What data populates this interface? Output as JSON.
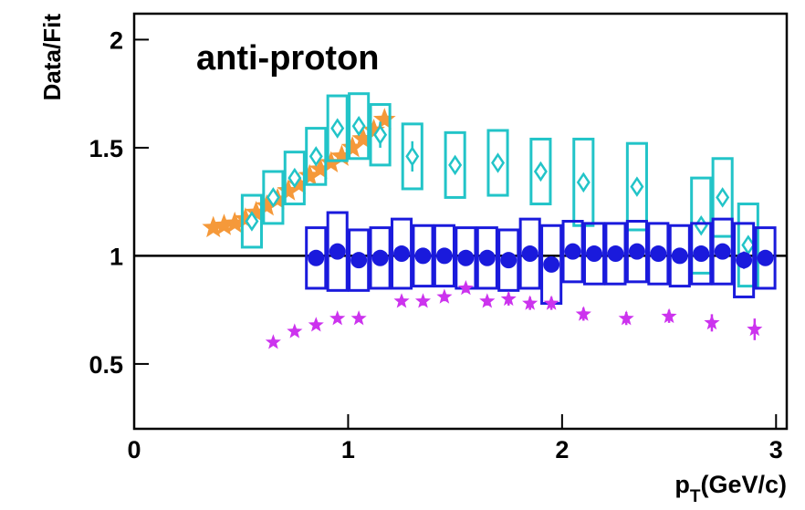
{
  "chart_data": {
    "type": "scatter",
    "title": "anti-proton",
    "ylabel": "Data/Fit",
    "xlabel": {
      "main": "p",
      "sub": "T",
      "unit": "(GeV/c)"
    },
    "xlim": [
      0,
      3.05
    ],
    "ylim": [
      0.2,
      2.12
    ],
    "xticks": [
      0,
      1,
      2,
      3
    ],
    "yticks": [
      0.5,
      1,
      1.5,
      2
    ],
    "hline": 1,
    "series": [
      {
        "marker": "star",
        "color": "#f5993a",
        "x": [
          0.37,
          0.42,
          0.47,
          0.52,
          0.57,
          0.62,
          0.67,
          0.72,
          0.77,
          0.82,
          0.87,
          0.92,
          0.97,
          1.02,
          1.07,
          1.12,
          1.17
        ],
        "values": [
          1.13,
          1.14,
          1.15,
          1.17,
          1.2,
          1.23,
          1.26,
          1.3,
          1.33,
          1.37,
          1.4,
          1.43,
          1.46,
          1.5,
          1.54,
          1.58,
          1.63
        ]
      },
      {
        "marker": "diamond",
        "color": "#22c4c8",
        "x": [
          0.55,
          0.65,
          0.75,
          0.85,
          0.95,
          1.05,
          1.15,
          1.3,
          1.5,
          1.7,
          1.9,
          2.1,
          2.35,
          2.65,
          2.75,
          2.87
        ],
        "values": [
          1.16,
          1.27,
          1.36,
          1.46,
          1.59,
          1.6,
          1.56,
          1.46,
          1.42,
          1.43,
          1.39,
          1.34,
          1.32,
          1.14,
          1.27,
          1.05
        ],
        "err": [
          0.01,
          0.01,
          0.02,
          0.02,
          0.03,
          0.04,
          0.06,
          0.07,
          0.04,
          0.02,
          0.02,
          0.02,
          0.02,
          0.03,
          0.03,
          0.03
        ],
        "sys": [
          0.12,
          0.12,
          0.12,
          0.13,
          0.15,
          0.15,
          0.14,
          0.15,
          0.15,
          0.15,
          0.15,
          0.2,
          0.2,
          0.22,
          0.18,
          0.19
        ]
      },
      {
        "marker": "circle",
        "color": "#1a1adc",
        "x": [
          0.85,
          0.95,
          1.05,
          1.15,
          1.25,
          1.35,
          1.45,
          1.55,
          1.65,
          1.75,
          1.85,
          1.95,
          2.05,
          2.15,
          2.25,
          2.35,
          2.45,
          2.55,
          2.65,
          2.75,
          2.85,
          2.95
        ],
        "values": [
          0.99,
          1.02,
          0.98,
          0.99,
          1.01,
          1.0,
          1.0,
          0.99,
          0.99,
          0.98,
          1.01,
          0.96,
          1.02,
          1.01,
          1.01,
          1.02,
          1.01,
          1.0,
          1.01,
          1.02,
          0.98,
          0.99
        ],
        "err": [
          0.01,
          0.01,
          0.01,
          0.01,
          0.01,
          0.01,
          0.01,
          0.01,
          0.01,
          0.01,
          0.01,
          0.01,
          0.01,
          0.01,
          0.01,
          0.01,
          0.01,
          0.02,
          0.03,
          0.03,
          0.04,
          0.03
        ],
        "sys": [
          0.14,
          0.18,
          0.14,
          0.14,
          0.16,
          0.14,
          0.14,
          0.14,
          0.14,
          0.14,
          0.16,
          0.18,
          0.14,
          0.14,
          0.14,
          0.14,
          0.14,
          0.14,
          0.14,
          0.15,
          0.17,
          0.14
        ]
      },
      {
        "marker": "star",
        "color": "#cc33ee",
        "x": [
          0.65,
          0.75,
          0.85,
          0.95,
          1.05,
          1.25,
          1.35,
          1.45,
          1.55,
          1.65,
          1.75,
          1.85,
          1.95,
          2.1,
          2.3,
          2.5,
          2.7,
          2.9
        ],
        "values": [
          0.6,
          0.65,
          0.68,
          0.71,
          0.71,
          0.79,
          0.79,
          0.81,
          0.85,
          0.79,
          0.8,
          0.78,
          0.78,
          0.73,
          0.71,
          0.72,
          0.69,
          0.66
        ],
        "err": [
          0.01,
          0.01,
          0.01,
          0.01,
          0.01,
          0.01,
          0.02,
          0.02,
          0.02,
          0.02,
          0.03,
          0.03,
          0.03,
          0.03,
          0.03,
          0.03,
          0.04,
          0.05
        ]
      }
    ]
  }
}
